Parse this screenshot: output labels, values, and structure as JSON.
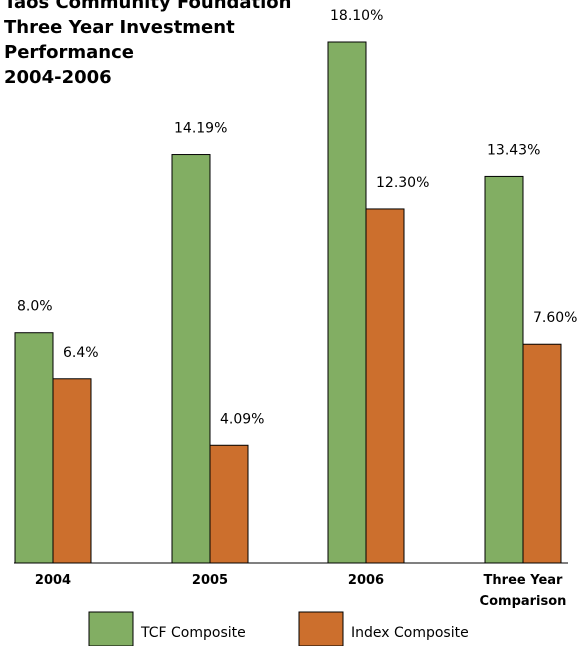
{
  "chart_data": {
    "type": "bar",
    "title_lines": [
      "Taos Community Foundation",
      "Three Year Investment",
      "Performance",
      "2004-2006"
    ],
    "categories": [
      [
        "2004"
      ],
      [
        "2005"
      ],
      [
        "2006"
      ],
      [
        "Three Year",
        "Comparison"
      ]
    ],
    "ylim": [
      0,
      18.1
    ],
    "grid": false,
    "legend_position": "bottom",
    "series": [
      {
        "name": "TCF Composite",
        "color": "#82ae63",
        "values": [
          8.0,
          14.19,
          18.1,
          13.43
        ],
        "labels": [
          "8.0%",
          "14.19%",
          "18.10%",
          "13.43%"
        ]
      },
      {
        "name": "Index Composite",
        "color": "#cc6f2d",
        "values": [
          6.4,
          4.09,
          12.3,
          7.6
        ],
        "labels": [
          "6.4%",
          "4.09%",
          "12.30%",
          "7.60%"
        ]
      }
    ]
  }
}
